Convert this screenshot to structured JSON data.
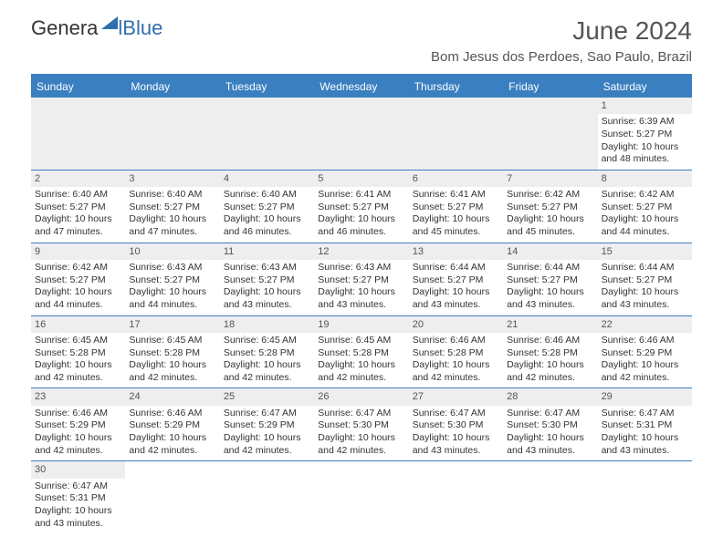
{
  "logo": {
    "gen": "Genera",
    "blue": "lBlue"
  },
  "title": "June 2024",
  "location": "Bom Jesus dos Perdoes, Sao Paulo, Brazil",
  "colors": {
    "header_bar": "#3a7fbf",
    "day_head_bg": "#eeeeee",
    "text": "#333333",
    "title_text": "#555555"
  },
  "weekdays": [
    "Sunday",
    "Monday",
    "Tuesday",
    "Wednesday",
    "Thursday",
    "Friday",
    "Saturday"
  ],
  "weeks": [
    [
      null,
      null,
      null,
      null,
      null,
      null,
      {
        "n": "1",
        "sr": "Sunrise: 6:39 AM",
        "ss": "Sunset: 5:27 PM",
        "dl": "Daylight: 10 hours and 48 minutes."
      }
    ],
    [
      {
        "n": "2",
        "sr": "Sunrise: 6:40 AM",
        "ss": "Sunset: 5:27 PM",
        "dl": "Daylight: 10 hours and 47 minutes."
      },
      {
        "n": "3",
        "sr": "Sunrise: 6:40 AM",
        "ss": "Sunset: 5:27 PM",
        "dl": "Daylight: 10 hours and 47 minutes."
      },
      {
        "n": "4",
        "sr": "Sunrise: 6:40 AM",
        "ss": "Sunset: 5:27 PM",
        "dl": "Daylight: 10 hours and 46 minutes."
      },
      {
        "n": "5",
        "sr": "Sunrise: 6:41 AM",
        "ss": "Sunset: 5:27 PM",
        "dl": "Daylight: 10 hours and 46 minutes."
      },
      {
        "n": "6",
        "sr": "Sunrise: 6:41 AM",
        "ss": "Sunset: 5:27 PM",
        "dl": "Daylight: 10 hours and 45 minutes."
      },
      {
        "n": "7",
        "sr": "Sunrise: 6:42 AM",
        "ss": "Sunset: 5:27 PM",
        "dl": "Daylight: 10 hours and 45 minutes."
      },
      {
        "n": "8",
        "sr": "Sunrise: 6:42 AM",
        "ss": "Sunset: 5:27 PM",
        "dl": "Daylight: 10 hours and 44 minutes."
      }
    ],
    [
      {
        "n": "9",
        "sr": "Sunrise: 6:42 AM",
        "ss": "Sunset: 5:27 PM",
        "dl": "Daylight: 10 hours and 44 minutes."
      },
      {
        "n": "10",
        "sr": "Sunrise: 6:43 AM",
        "ss": "Sunset: 5:27 PM",
        "dl": "Daylight: 10 hours and 44 minutes."
      },
      {
        "n": "11",
        "sr": "Sunrise: 6:43 AM",
        "ss": "Sunset: 5:27 PM",
        "dl": "Daylight: 10 hours and 43 minutes."
      },
      {
        "n": "12",
        "sr": "Sunrise: 6:43 AM",
        "ss": "Sunset: 5:27 PM",
        "dl": "Daylight: 10 hours and 43 minutes."
      },
      {
        "n": "13",
        "sr": "Sunrise: 6:44 AM",
        "ss": "Sunset: 5:27 PM",
        "dl": "Daylight: 10 hours and 43 minutes."
      },
      {
        "n": "14",
        "sr": "Sunrise: 6:44 AM",
        "ss": "Sunset: 5:27 PM",
        "dl": "Daylight: 10 hours and 43 minutes."
      },
      {
        "n": "15",
        "sr": "Sunrise: 6:44 AM",
        "ss": "Sunset: 5:27 PM",
        "dl": "Daylight: 10 hours and 43 minutes."
      }
    ],
    [
      {
        "n": "16",
        "sr": "Sunrise: 6:45 AM",
        "ss": "Sunset: 5:28 PM",
        "dl": "Daylight: 10 hours and 42 minutes."
      },
      {
        "n": "17",
        "sr": "Sunrise: 6:45 AM",
        "ss": "Sunset: 5:28 PM",
        "dl": "Daylight: 10 hours and 42 minutes."
      },
      {
        "n": "18",
        "sr": "Sunrise: 6:45 AM",
        "ss": "Sunset: 5:28 PM",
        "dl": "Daylight: 10 hours and 42 minutes."
      },
      {
        "n": "19",
        "sr": "Sunrise: 6:45 AM",
        "ss": "Sunset: 5:28 PM",
        "dl": "Daylight: 10 hours and 42 minutes."
      },
      {
        "n": "20",
        "sr": "Sunrise: 6:46 AM",
        "ss": "Sunset: 5:28 PM",
        "dl": "Daylight: 10 hours and 42 minutes."
      },
      {
        "n": "21",
        "sr": "Sunrise: 6:46 AM",
        "ss": "Sunset: 5:28 PM",
        "dl": "Daylight: 10 hours and 42 minutes."
      },
      {
        "n": "22",
        "sr": "Sunrise: 6:46 AM",
        "ss": "Sunset: 5:29 PM",
        "dl": "Daylight: 10 hours and 42 minutes."
      }
    ],
    [
      {
        "n": "23",
        "sr": "Sunrise: 6:46 AM",
        "ss": "Sunset: 5:29 PM",
        "dl": "Daylight: 10 hours and 42 minutes."
      },
      {
        "n": "24",
        "sr": "Sunrise: 6:46 AM",
        "ss": "Sunset: 5:29 PM",
        "dl": "Daylight: 10 hours and 42 minutes."
      },
      {
        "n": "25",
        "sr": "Sunrise: 6:47 AM",
        "ss": "Sunset: 5:29 PM",
        "dl": "Daylight: 10 hours and 42 minutes."
      },
      {
        "n": "26",
        "sr": "Sunrise: 6:47 AM",
        "ss": "Sunset: 5:30 PM",
        "dl": "Daylight: 10 hours and 42 minutes."
      },
      {
        "n": "27",
        "sr": "Sunrise: 6:47 AM",
        "ss": "Sunset: 5:30 PM",
        "dl": "Daylight: 10 hours and 43 minutes."
      },
      {
        "n": "28",
        "sr": "Sunrise: 6:47 AM",
        "ss": "Sunset: 5:30 PM",
        "dl": "Daylight: 10 hours and 43 minutes."
      },
      {
        "n": "29",
        "sr": "Sunrise: 6:47 AM",
        "ss": "Sunset: 5:31 PM",
        "dl": "Daylight: 10 hours and 43 minutes."
      }
    ],
    [
      {
        "n": "30",
        "sr": "Sunrise: 6:47 AM",
        "ss": "Sunset: 5:31 PM",
        "dl": "Daylight: 10 hours and 43 minutes."
      },
      null,
      null,
      null,
      null,
      null,
      null
    ]
  ]
}
